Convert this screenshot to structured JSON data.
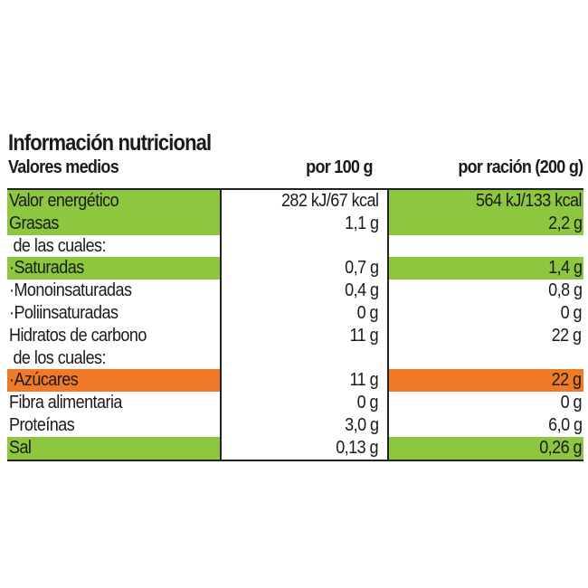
{
  "title": "Información nutricional",
  "header": {
    "label": "Valores medios",
    "per100": "por 100 g",
    "perServing": "por ración (200 g)"
  },
  "colors": {
    "green": "#8dc63f",
    "orange": "#f07a28"
  },
  "rows": [
    {
      "label": "Valor energético",
      "per100": "282 kJ/67 kcal",
      "perServing": "564 kJ/133 kcal",
      "highlight": "green"
    },
    {
      "label": "Grasas",
      "per100": "1,1 g",
      "perServing": "2,2 g",
      "highlight": "green"
    },
    {
      "label": " de las cuales:",
      "per100": "",
      "perServing": "",
      "highlight": ""
    },
    {
      "label": "·Saturadas",
      "per100": "0,7 g",
      "perServing": "1,4 g",
      "highlight": "green"
    },
    {
      "label": "·Monoinsaturadas",
      "per100": "0,4 g",
      "perServing": "0,8 g",
      "highlight": ""
    },
    {
      "label": "·Poliinsaturadas",
      "per100": "0 g",
      "perServing": "0 g",
      "highlight": ""
    },
    {
      "label": "Hidratos de carbono",
      "per100": "11 g",
      "perServing": "22 g",
      "highlight": ""
    },
    {
      "label": " de los cuales:",
      "per100": "",
      "perServing": "",
      "highlight": ""
    },
    {
      "label": "·Azúcares",
      "per100": "11 g",
      "perServing": "22 g",
      "highlight": "orange"
    },
    {
      "label": "Fibra alimentaria",
      "per100": "0 g",
      "perServing": "0 g",
      "highlight": ""
    },
    {
      "label": "Proteínas",
      "per100": "3,0 g",
      "perServing": "6,0 g",
      "highlight": ""
    },
    {
      "label": "Sal",
      "per100": "0,13 g",
      "perServing": "0,26 g",
      "highlight": "green"
    }
  ]
}
